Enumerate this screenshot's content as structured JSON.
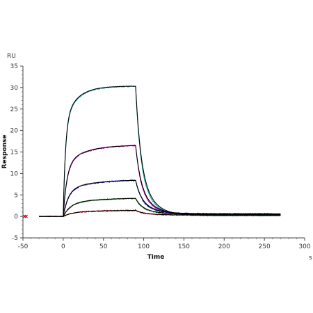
{
  "chart_data": {
    "type": "line",
    "title": "",
    "xlabel": "Time",
    "ylabel": "Response",
    "x_unit": "s",
    "y_unit": "RU",
    "xlim": [
      -50,
      300
    ],
    "ylim": [
      -5,
      35
    ],
    "x_ticks": [
      -50,
      0,
      50,
      100,
      150,
      200,
      250,
      300
    ],
    "x_tick_labels": [
      "-50",
      "0",
      "50",
      "100",
      "150",
      "200",
      "250",
      "300"
    ],
    "y_ticks": [
      -5,
      0,
      5,
      10,
      15,
      20,
      25,
      30,
      35
    ],
    "y_tick_labels": [
      "-5",
      "0",
      "5",
      "10",
      "15",
      "20",
      "25",
      "30",
      "35"
    ],
    "grid": false,
    "legend": "none",
    "association_start": 0,
    "dissociation_start": 90,
    "x_end": 270,
    "series": [
      {
        "color": "#00a0a0",
        "values_at_90s": 30.3,
        "values_at_270s": 0.2
      },
      {
        "color": "#c000c0",
        "values_at_90s": 16.5,
        "values_at_270s": 0.4
      },
      {
        "color": "#0000c0",
        "values_at_90s": 8.4,
        "values_at_270s": 0.6
      },
      {
        "color": "#008000",
        "values_at_90s": 4.2,
        "values_at_270s": 0.5
      },
      {
        "color": "#c00000",
        "values_at_90s": 1.4,
        "values_at_270s": 0.3
      }
    ],
    "fits": [
      {
        "color": "#000000",
        "values_at_90s": 30.3,
        "values_at_270s": 0.2
      },
      {
        "color": "#000000",
        "values_at_90s": 16.5,
        "values_at_270s": 0.4
      },
      {
        "color": "#000000",
        "values_at_90s": 8.4,
        "values_at_270s": 0.6
      },
      {
        "color": "#000000",
        "values_at_90s": 4.2,
        "values_at_270s": 0.5
      },
      {
        "color": "#000000",
        "values_at_90s": 1.4,
        "values_at_270s": 0.3
      }
    ]
  }
}
